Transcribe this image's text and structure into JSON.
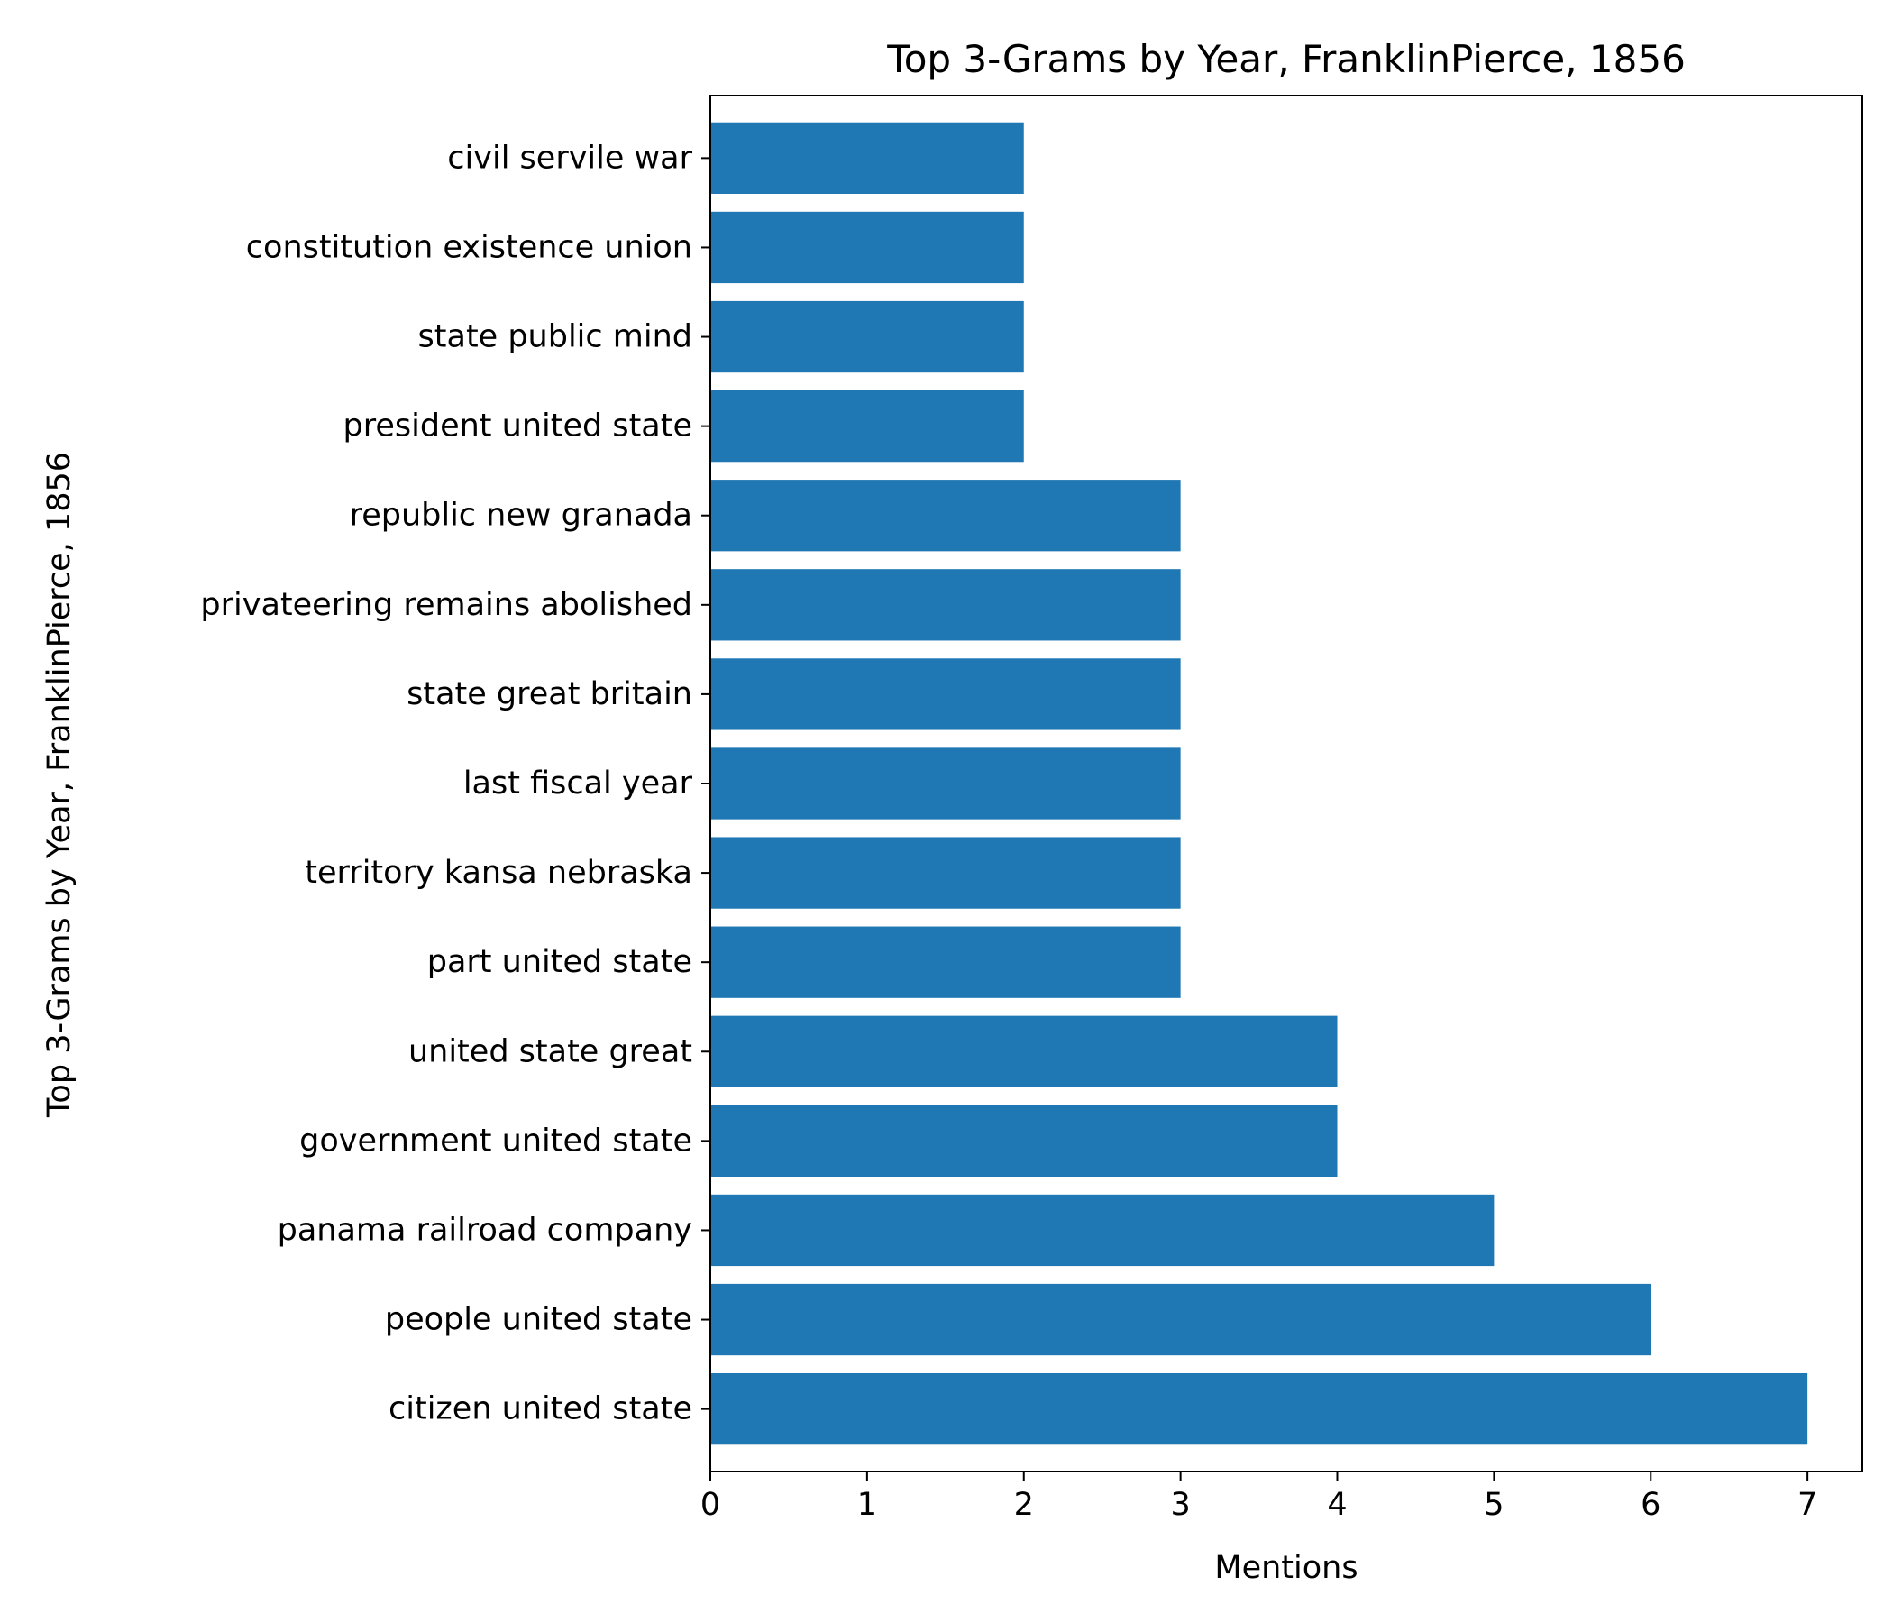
{
  "chart_data": {
    "type": "bar",
    "orientation": "horizontal",
    "title": "Top 3-Grams by Year, FranklinPierce, 1856",
    "xlabel": "Mentions",
    "ylabel": "Top 3-Grams by Year, FranklinPierce, 1856",
    "categories": [
      "citizen united state",
      "people united state",
      "panama railroad company",
      "government united state",
      "united state great",
      "part united state",
      "territory kansa nebraska",
      "last fiscal year",
      "state great britain",
      "privateering remains abolished",
      "republic new granada",
      "president united state",
      "state public mind",
      "constitution existence union",
      "civil servile war"
    ],
    "values": [
      7,
      6,
      5,
      4,
      4,
      3,
      3,
      3,
      3,
      3,
      3,
      2,
      2,
      2,
      2
    ],
    "xlim": [
      0,
      7.35
    ],
    "xticks": [
      0,
      1,
      2,
      3,
      4,
      5,
      6,
      7
    ],
    "bar_color": "#1f77b4",
    "grid": false,
    "legend": "none"
  }
}
